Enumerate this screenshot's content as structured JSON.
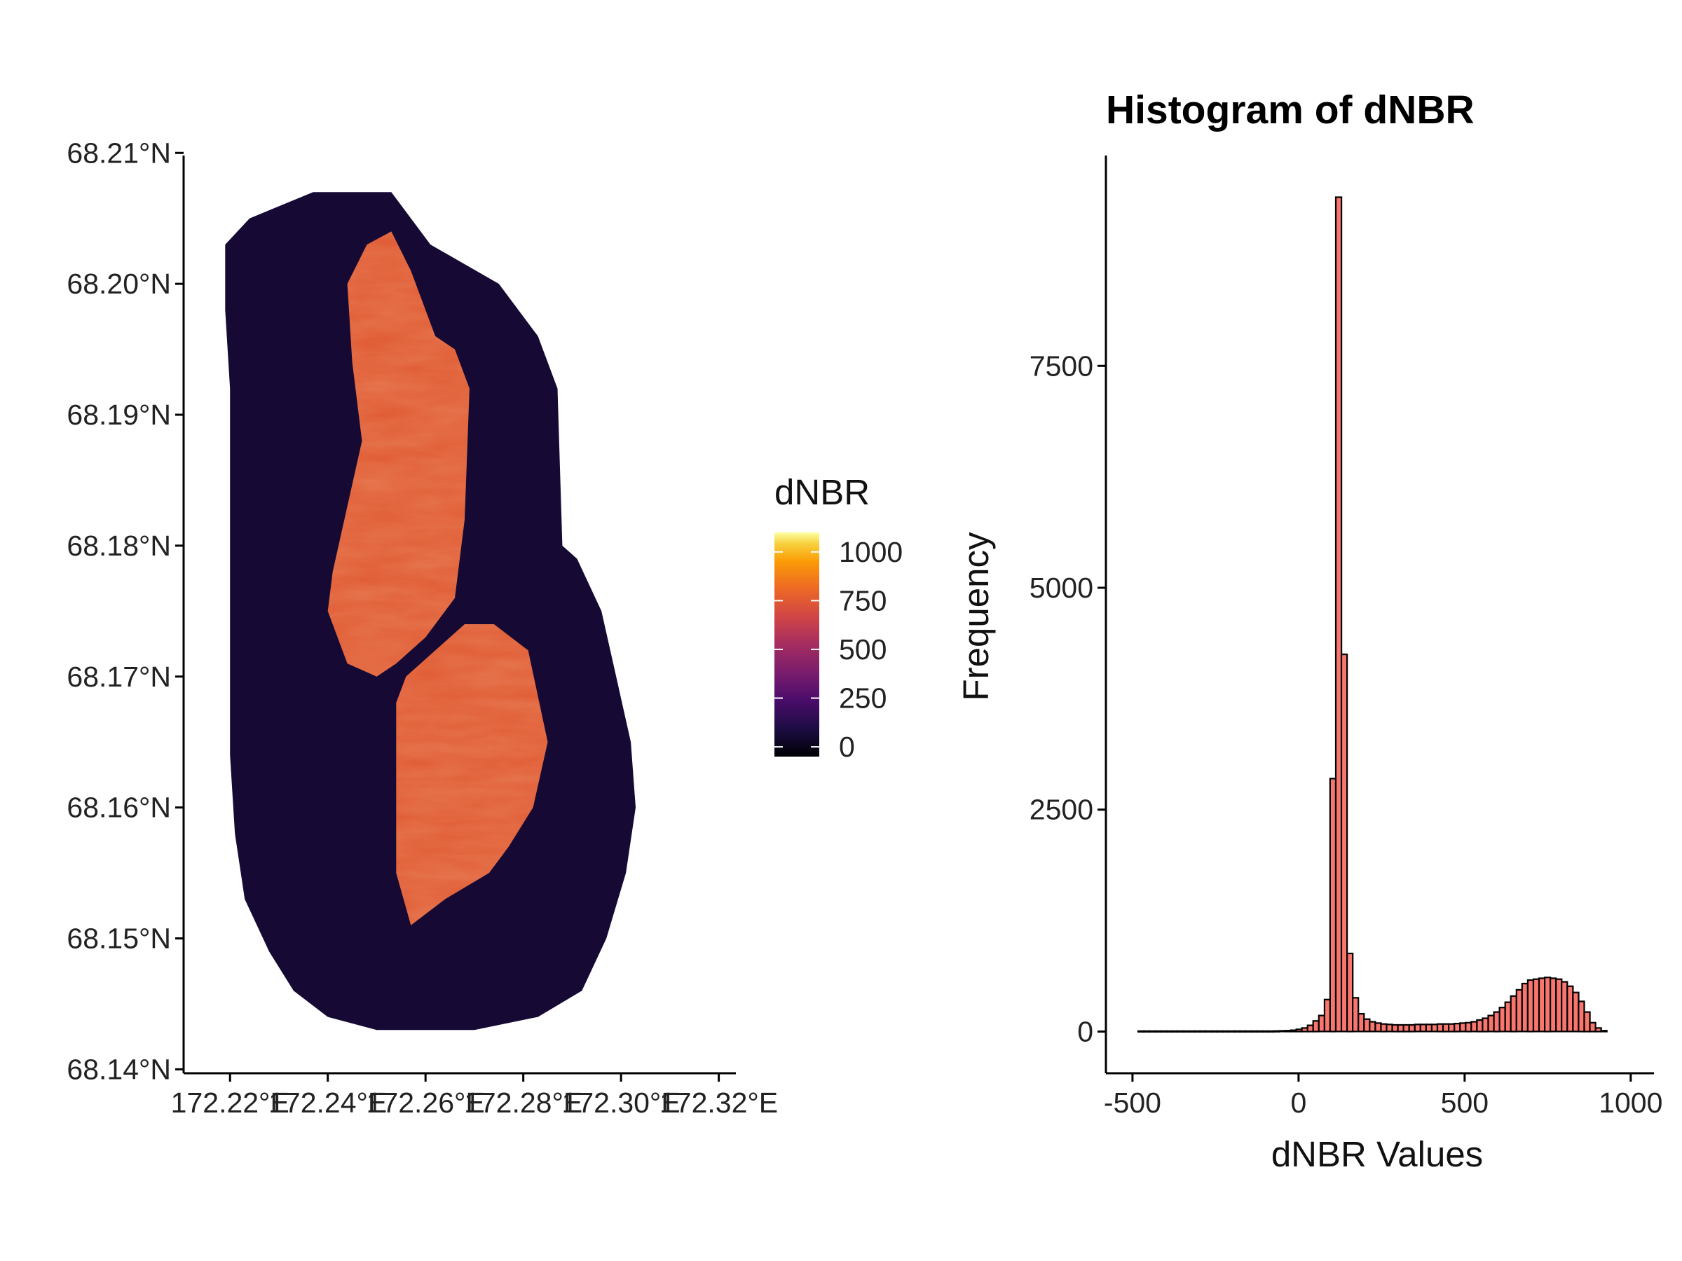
{
  "chart_data": [
    {
      "type": "heatmap",
      "title": "",
      "xlabel": "",
      "ylabel": "",
      "x_tick_labels": [
        "172.22°E",
        "172.24°E",
        "172.26°E",
        "172.28°E",
        "172.30°E",
        "172.32°E"
      ],
      "x_ticks": [
        172.22,
        172.24,
        172.26,
        172.28,
        172.3,
        172.32
      ],
      "y_tick_labels": [
        "68.14°N",
        "68.15°N",
        "68.16°N",
        "68.17°N",
        "68.18°N",
        "68.19°N",
        "68.20°N",
        "68.21°N"
      ],
      "y_ticks": [
        68.14,
        68.15,
        68.16,
        68.17,
        68.18,
        68.19,
        68.2,
        68.21
      ],
      "xlim": [
        172.2105,
        172.3235
      ],
      "ylim": [
        68.1397,
        68.2098
      ],
      "legend": {
        "title": "dNBR",
        "labels": [
          "1000",
          "750",
          "500",
          "250",
          "0"
        ],
        "breaks": [
          1000,
          750,
          500,
          250,
          0
        ],
        "range": [
          -50,
          1100
        ],
        "palette": "inferno",
        "placement": "right"
      },
      "background_value": 60,
      "burn_scar_value": 750,
      "boundary": [
        [
          172.219,
          68.203
        ],
        [
          172.224,
          68.205
        ],
        [
          172.237,
          68.207
        ],
        [
          172.253,
          68.207
        ],
        [
          172.261,
          68.203
        ],
        [
          172.275,
          68.2
        ],
        [
          172.283,
          68.196
        ],
        [
          172.287,
          68.192
        ],
        [
          172.288,
          68.18
        ],
        [
          172.291,
          68.179
        ],
        [
          172.296,
          68.175
        ],
        [
          172.299,
          68.17
        ],
        [
          172.302,
          68.165
        ],
        [
          172.303,
          68.16
        ],
        [
          172.301,
          68.155
        ],
        [
          172.297,
          68.15
        ],
        [
          172.292,
          68.146
        ],
        [
          172.283,
          68.144
        ],
        [
          172.27,
          68.143
        ],
        [
          172.25,
          68.143
        ],
        [
          172.24,
          68.144
        ],
        [
          172.233,
          68.146
        ],
        [
          172.228,
          68.149
        ],
        [
          172.223,
          68.153
        ],
        [
          172.221,
          68.158
        ],
        [
          172.22,
          68.164
        ],
        [
          172.22,
          68.172
        ],
        [
          172.22,
          68.182
        ],
        [
          172.22,
          68.192
        ],
        [
          172.219,
          68.198
        ]
      ],
      "burn_patch_north": [
        [
          172.244,
          68.2
        ],
        [
          172.248,
          68.203
        ],
        [
          172.253,
          68.204
        ],
        [
          172.257,
          68.201
        ],
        [
          172.262,
          68.196
        ],
        [
          172.266,
          68.195
        ],
        [
          172.269,
          68.192
        ],
        [
          172.268,
          68.182
        ],
        [
          172.266,
          68.176
        ],
        [
          172.26,
          68.173
        ],
        [
          172.254,
          68.171
        ],
        [
          172.25,
          68.17
        ],
        [
          172.244,
          68.171
        ],
        [
          172.24,
          68.175
        ],
        [
          172.241,
          68.178
        ],
        [
          172.244,
          68.183
        ],
        [
          172.247,
          68.188
        ],
        [
          172.245,
          68.194
        ]
      ],
      "burn_patch_south": [
        [
          172.256,
          68.17
        ],
        [
          172.262,
          68.172
        ],
        [
          172.268,
          68.174
        ],
        [
          172.274,
          68.174
        ],
        [
          172.281,
          68.172
        ],
        [
          172.285,
          68.165
        ],
        [
          172.282,
          68.16
        ],
        [
          172.277,
          68.157
        ],
        [
          172.273,
          68.155
        ],
        [
          172.264,
          68.153
        ],
        [
          172.257,
          68.151
        ],
        [
          172.254,
          68.155
        ],
        [
          172.254,
          68.162
        ],
        [
          172.254,
          68.168
        ]
      ]
    },
    {
      "type": "bar",
      "title": "Histogram of dNBR",
      "xlabel": "dNBR Values",
      "ylabel": "Frequency",
      "x_tick_labels": [
        "-500",
        "0",
        "500",
        "1000"
      ],
      "x_ticks": [
        -500,
        0,
        500,
        1000
      ],
      "y_tick_labels": [
        "0",
        "2500",
        "5000",
        "7500"
      ],
      "y_ticks": [
        0,
        2500,
        5000,
        7500
      ],
      "xlim": [
        -580,
        1070
      ],
      "ylim": [
        -470,
        9870
      ],
      "bin_width": 17,
      "bin_start": -483,
      "fill": "#f8766d",
      "values": [
        5,
        5,
        5,
        5,
        5,
        5,
        5,
        5,
        5,
        5,
        5,
        5,
        5,
        5,
        5,
        5,
        5,
        5,
        5,
        5,
        5,
        5,
        5,
        5,
        6,
        8,
        10,
        15,
        25,
        40,
        70,
        120,
        180,
        360,
        2850,
        9400,
        4250,
        880,
        380,
        200,
        140,
        110,
        95,
        85,
        80,
        75,
        75,
        75,
        75,
        80,
        80,
        80,
        80,
        85,
        85,
        85,
        90,
        95,
        100,
        110,
        130,
        150,
        180,
        220,
        270,
        330,
        400,
        470,
        540,
        580,
        590,
        600,
        610,
        600,
        590,
        560,
        510,
        440,
        340,
        220,
        100,
        40,
        10
      ]
    }
  ]
}
